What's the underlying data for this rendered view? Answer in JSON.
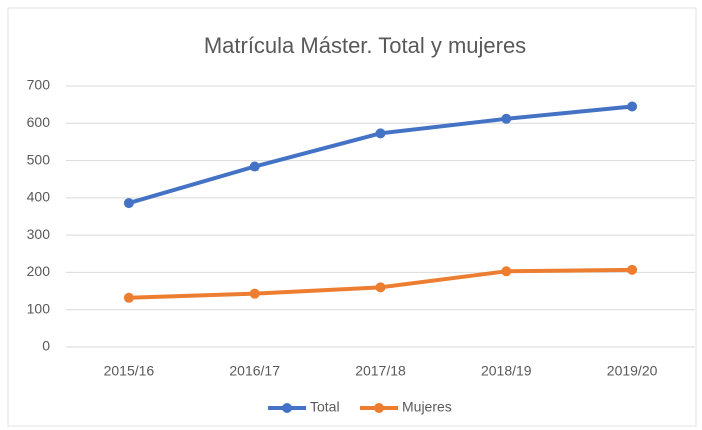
{
  "chart_data": {
    "type": "line",
    "title": "Matrícula Máster. Total y mujeres",
    "categories": [
      "2015/16",
      "2016/17",
      "2017/18",
      "2018/19",
      "2019/20"
    ],
    "series": [
      {
        "name": "Total",
        "color": "#4472c4",
        "values": [
          386,
          484,
          573,
          612,
          645
        ]
      },
      {
        "name": "Mujeres",
        "color": "#ed7d31",
        "values": [
          132,
          143,
          160,
          203,
          207
        ]
      }
    ],
    "ylim": [
      0,
      700
    ],
    "yticks": [
      0,
      100,
      200,
      300,
      400,
      500,
      600,
      700
    ],
    "grid": true,
    "legend": "bottom"
  }
}
